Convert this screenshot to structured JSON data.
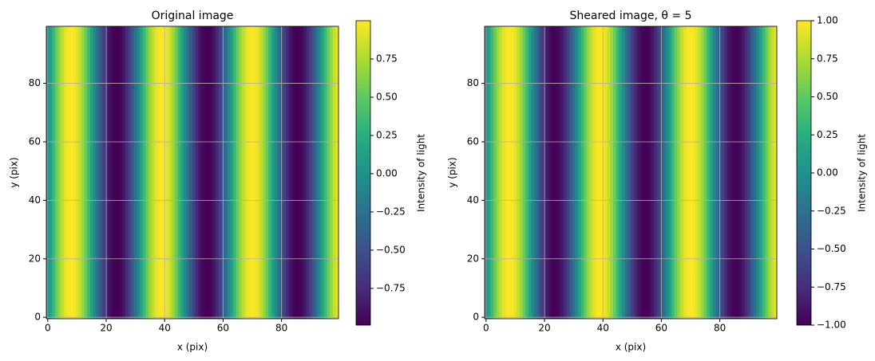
{
  "chart_data": [
    {
      "type": "heatmap",
      "title": "Original image",
      "xlabel": "x (pix)",
      "ylabel": "y (pix)",
      "colorbar_label": "Intensity of light",
      "colormap": "viridis",
      "values": [
        -0.05,
        0.15,
        0.35,
        0.53,
        0.69,
        0.82,
        0.92,
        0.98,
        1.0,
        0.98,
        0.92,
        0.82,
        0.69,
        0.53,
        0.35,
        0.15,
        -0.05,
        -0.25,
        -0.44,
        -0.61,
        -0.76,
        -0.87,
        -0.95,
        -0.99,
        -0.99,
        -0.95,
        -0.87,
        -0.76,
        -0.61,
        -0.44,
        -0.25,
        -0.05,
        0.15,
        0.35,
        0.53,
        0.69,
        0.82,
        0.92,
        0.98,
        1.0,
        0.98,
        0.92,
        0.82,
        0.69,
        0.53,
        0.35,
        0.15,
        -0.05,
        -0.25,
        -0.44,
        -0.61,
        -0.76,
        -0.87,
        -0.95,
        -0.99,
        -0.99,
        -0.95,
        -0.87,
        -0.76,
        -0.61,
        -0.44,
        -0.25,
        -0.05,
        0.15,
        0.35,
        0.53,
        0.69,
        0.82,
        0.92,
        0.98,
        1.0,
        0.98,
        0.92,
        0.82,
        0.69,
        0.53,
        0.35,
        0.15,
        -0.05,
        -0.25,
        -0.44,
        -0.61,
        -0.76,
        -0.87,
        -0.95,
        -0.99,
        -0.99,
        -0.95,
        -0.87,
        -0.76,
        -0.61,
        -0.44,
        -0.25,
        -0.05,
        0.15,
        0.35,
        0.53,
        0.69,
        0.82,
        0.92
      ],
      "xlim": [
        -0.5,
        99.5
      ],
      "ylim": [
        -0.5,
        99.5
      ],
      "xticks": [
        0,
        20,
        40,
        60,
        80
      ],
      "yticks": [
        0,
        20,
        40,
        60,
        80
      ],
      "grid": true,
      "clim": [
        -0.99,
        1.0
      ],
      "cticks": [
        {
          "value": -0.75,
          "label": "−0.75"
        },
        {
          "value": -0.5,
          "label": "−0.50"
        },
        {
          "value": -0.25,
          "label": "−0.25"
        },
        {
          "value": 0,
          "label": "0.00"
        },
        0.25,
        {
          "value": 0.5,
          "label": "0.50"
        },
        0.75
      ]
    },
    {
      "type": "heatmap",
      "title": "Sheared image, θ = 5",
      "xlabel": "x (pix)",
      "ylabel": "y (pix)",
      "colorbar_label": "Intensity of light",
      "colormap": "viridis",
      "values": [
        -0.05,
        0.15,
        0.35,
        0.53,
        0.69,
        0.82,
        0.92,
        0.98,
        1.0,
        0.98,
        0.92,
        0.82,
        0.69,
        0.53,
        0.35,
        0.15,
        -0.05,
        -0.25,
        -0.44,
        -0.61,
        -0.76,
        -0.87,
        -0.95,
        -0.99,
        -0.99,
        -0.95,
        -0.87,
        -0.76,
        -0.61,
        -0.44,
        -0.25,
        -0.05,
        0.15,
        0.35,
        0.53,
        0.69,
        0.82,
        0.92,
        0.98,
        1.0,
        0.98,
        0.92,
        0.82,
        0.69,
        0.53,
        0.35,
        0.15,
        -0.05,
        -0.25,
        -0.44,
        -0.61,
        -0.76,
        -0.87,
        -0.95,
        -0.99,
        -0.99,
        -0.95,
        -0.87,
        -0.76,
        -0.61,
        -0.44,
        -0.25,
        -0.05,
        0.15,
        0.35,
        0.53,
        0.69,
        0.82,
        0.92,
        0.98,
        1.0,
        0.98,
        0.92,
        0.82,
        0.69,
        0.53,
        0.35,
        0.15,
        -0.05,
        -0.25,
        -0.44,
        -0.61,
        -0.76,
        -0.87,
        -0.95,
        -0.99,
        -0.99,
        -0.95,
        -0.87,
        -0.76,
        -0.61,
        -0.44,
        -0.25,
        -0.05,
        0.15,
        0.35,
        0.53,
        0.69,
        0.82,
        0.92
      ],
      "xlim": [
        -0.5,
        99.5
      ],
      "ylim": [
        -0.5,
        99.5
      ],
      "xticks": [
        0,
        20,
        40,
        60,
        80
      ],
      "yticks": [
        0,
        20,
        40,
        60,
        80
      ],
      "grid": true,
      "clim": [
        -1.0,
        1.0
      ],
      "cticks": [
        {
          "value": -1,
          "label": "−1.00"
        },
        {
          "value": -0.75,
          "label": "−0.75"
        },
        {
          "value": -0.5,
          "label": "−0.50"
        },
        {
          "value": -0.25,
          "label": "−0.25"
        },
        {
          "value": 0,
          "label": "0.00"
        },
        0.25,
        {
          "value": 0.5,
          "label": "0.50"
        },
        0.75,
        {
          "value": 1,
          "label": "1.00"
        }
      ]
    }
  ]
}
